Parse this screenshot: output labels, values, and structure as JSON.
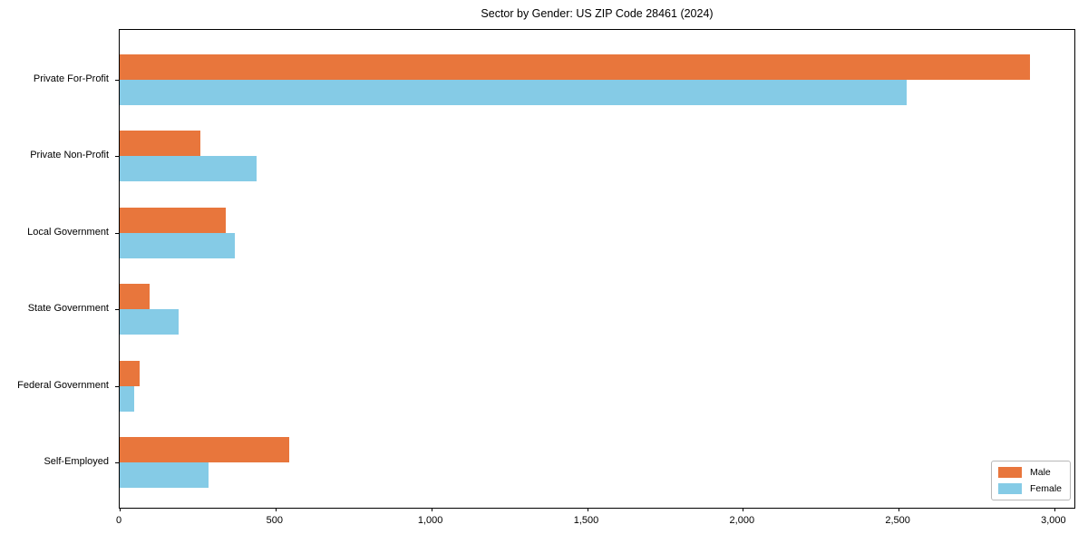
{
  "chart_data": {
    "type": "bar",
    "orientation": "horizontal",
    "title": "Sector by Gender: US ZIP Code 28461 (2024)",
    "categories": [
      "Private For-Profit",
      "Private Non-Profit",
      "Local Government",
      "State Government",
      "Federal Government",
      "Self-Employed"
    ],
    "series": [
      {
        "name": "Male",
        "color": "#E8763C",
        "values": [
          2920,
          260,
          340,
          95,
          65,
          545
        ]
      },
      {
        "name": "Female",
        "color": "#85CBE6",
        "values": [
          2525,
          440,
          370,
          190,
          45,
          285
        ]
      }
    ],
    "xlabel": "",
    "ylabel": "",
    "xlim": [
      0,
      3070
    ],
    "xticks": [
      {
        "value": 0,
        "label": "0"
      },
      {
        "value": 500,
        "label": "500"
      },
      {
        "value": 1000,
        "label": "1,000"
      },
      {
        "value": 1500,
        "label": "1,500"
      },
      {
        "value": 2000,
        "label": "2,000"
      },
      {
        "value": 2500,
        "label": "2,500"
      },
      {
        "value": 3000,
        "label": "3,000"
      }
    ],
    "grid": false,
    "legend": {
      "position": "lower right"
    },
    "axis_color": "#000000"
  }
}
